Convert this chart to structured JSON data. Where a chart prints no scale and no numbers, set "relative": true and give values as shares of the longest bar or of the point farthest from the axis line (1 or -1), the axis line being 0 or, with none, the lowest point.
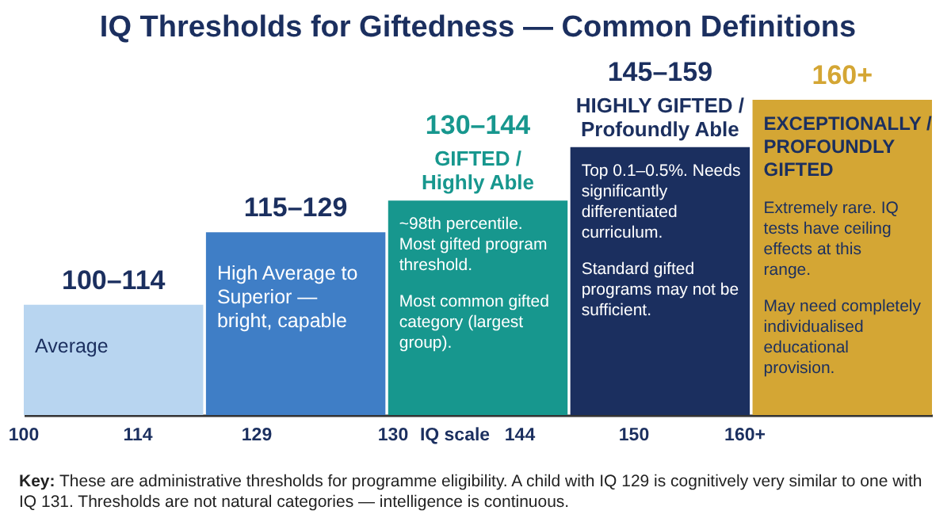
{
  "chart_data": {
    "type": "bar",
    "title": "IQ Thresholds for Giftedness — Common Definitions",
    "relative": true,
    "xlabel": "IQ scale",
    "categories": [
      "100–114",
      "115–129",
      "130–144",
      "145–159",
      "160+"
    ],
    "values": [
      0.35,
      0.58,
      0.68,
      0.85,
      1
    ],
    "colors": [
      "#b8d5f0",
      "#3f7ec6",
      "#17978e",
      "#1b2f5f",
      "#d4a634"
    ],
    "annotations": [
      "Average",
      "High Average to Superior — bright, capable",
      "GIFTED / Highly Able",
      "~98th percentile. Most gifted program threshold.",
      "Most common gifted category (largest group).",
      "HIGHLY GIFTED / Profoundly Able",
      "Top 0.1–0.5%. Needs significantly differentiated curriculum.",
      "Standard gifted programs may not be sufficient.",
      "EXCEPTIONALLY / PROFOUNDLY GIFTED",
      "Extremely rare. IQ tests have ceiling effects at this range.",
      "May need completely individualised educational provision.",
      "100",
      "114",
      "129",
      "130",
      "144",
      "150",
      "160+",
      "Key: These are administrative thresholds for programme eligibility. A child with IQ 129 is cognitively very similar to one with IQ 131. Thresholds are not natural categories — intelligence is continuous."
    ]
  }
}
